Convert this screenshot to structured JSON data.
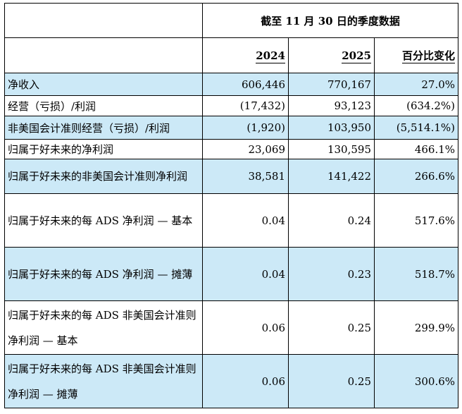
{
  "header": {
    "period_title": "截至 11 月 30 日的季度数据",
    "col_2024": "2024",
    "col_2025": "2025",
    "col_change": "百分比变化"
  },
  "rows": [
    {
      "label": "净收入",
      "v2024": "606,446",
      "v2025": "770,167",
      "change": "27.0%"
    },
    {
      "label": "经营（亏损）/利润",
      "v2024": "(17,432)",
      "v2025": "93,123",
      "change": "(634.2%)"
    },
    {
      "label": "非美国会计准则经营（亏损）/利润",
      "v2024": "(1,920)",
      "v2025": "103,950",
      "change": "(5,514.1%)"
    },
    {
      "label": "归属于好未来的净利润",
      "v2024": "23,069",
      "v2025": "130,595",
      "change": "466.1%"
    },
    {
      "label": "归属于好未来的非美国会计准则净利润",
      "v2024": "38,581",
      "v2025": "141,422",
      "change": "266.6%"
    },
    {
      "label": "归属于好未来的每 ADS 净利润 — 基本",
      "v2024": "0.04",
      "v2025": "0.24",
      "change": "517.6%"
    },
    {
      "label": "归属于好未来的每 ADS 净利润 — 摊薄",
      "v2024": "0.04",
      "v2025": "0.23",
      "change": "518.7%"
    },
    {
      "label": "归属于好未来的每 ADS 非美国会计准则净利润 — 基本",
      "v2024": "0.06",
      "v2025": "0.25",
      "change": "299.9%"
    },
    {
      "label": "归属于好未来的每 ADS 非美国会计准则净利润 — 摊薄",
      "v2024": "0.06",
      "v2025": "0.25",
      "change": "300.6%"
    }
  ]
}
